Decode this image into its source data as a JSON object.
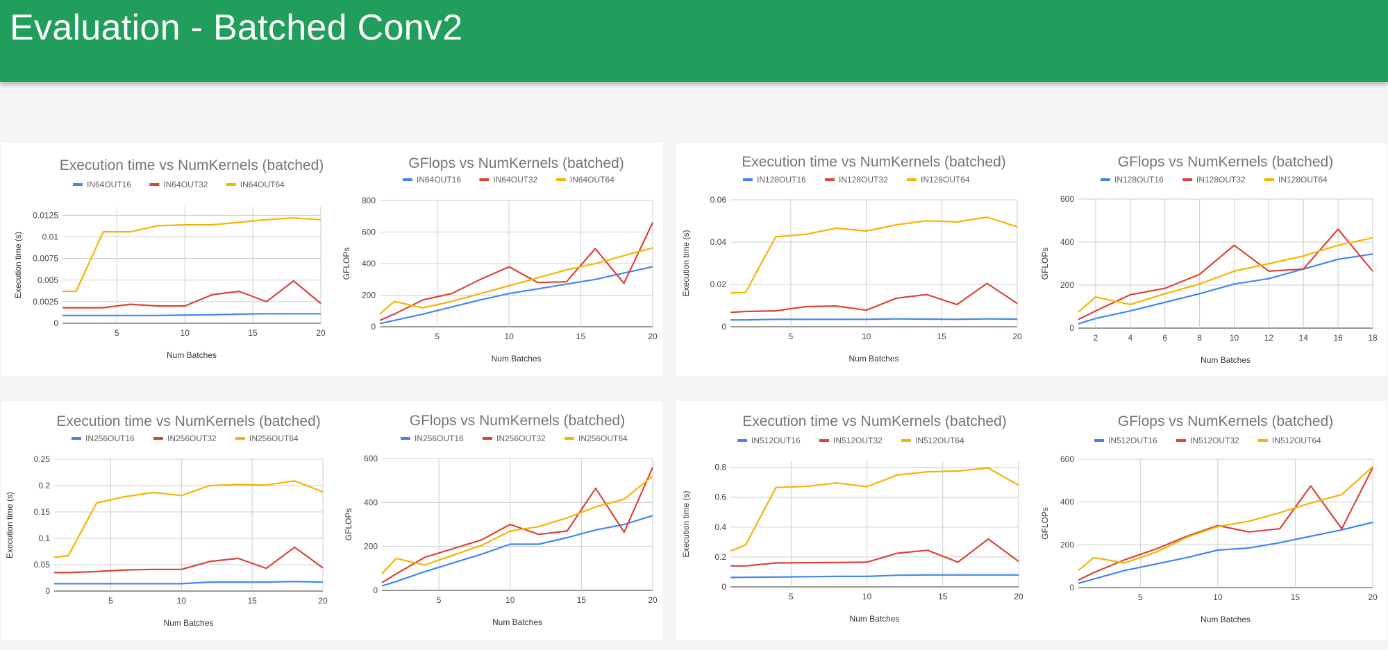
{
  "header": {
    "title": "Evaluation - Batched Conv2"
  },
  "colors": {
    "series": [
      "#4285f4",
      "#db4437",
      "#f4b400"
    ],
    "header": "#219e5b"
  },
  "chart_data": [
    {
      "type": "line",
      "title": "Execution time vs NumKernels (batched)",
      "xlabel": "Num Batches",
      "ylabel": "Execution time (s)",
      "xlim": [
        1,
        20
      ],
      "ylim": [
        0,
        0.0135
      ],
      "xticks": [
        5,
        10,
        15,
        20
      ],
      "xtick_labels": [
        "5",
        "10",
        "15",
        "20"
      ],
      "yticks": [
        0,
        0.0025,
        0.005,
        0.0075,
        0.01,
        0.0125
      ],
      "ytick_labels": [
        "0",
        "0.0025",
        "0.005",
        "0.0075",
        "0.01",
        "0.0125"
      ],
      "x": [
        1,
        2,
        4,
        6,
        8,
        10,
        12,
        14,
        16,
        18,
        20
      ],
      "series": [
        {
          "name": "IN64OUT16",
          "values": [
            0.0009,
            0.0009,
            0.0009,
            0.0009,
            0.0009,
            0.00095,
            0.001,
            0.00105,
            0.0011,
            0.0011,
            0.0011
          ]
        },
        {
          "name": "IN64OUT32",
          "values": [
            0.0018,
            0.0018,
            0.0018,
            0.0022,
            0.002,
            0.002,
            0.0033,
            0.0037,
            0.0025,
            0.0049,
            0.0023
          ]
        },
        {
          "name": "IN64OUT64",
          "values": [
            0.0037,
            0.0037,
            0.0106,
            0.0106,
            0.0113,
            0.0114,
            0.0114,
            0.0117,
            0.012,
            0.0122,
            0.012
          ]
        }
      ]
    },
    {
      "type": "line",
      "title": "GFlops vs NumKernels (batched)",
      "xlabel": "Num Batches",
      "ylabel": "GFLOPs",
      "xlim": [
        1,
        20
      ],
      "ylim": [
        0,
        800
      ],
      "xticks": [
        5,
        10,
        15,
        20
      ],
      "xtick_labels": [
        "5",
        "10",
        "15",
        "20"
      ],
      "yticks": [
        0,
        200,
        400,
        600,
        800
      ],
      "ytick_labels": [
        "0",
        "200",
        "400",
        "600",
        "800"
      ],
      "x": [
        1,
        2,
        4,
        6,
        8,
        10,
        12,
        14,
        16,
        18,
        20
      ],
      "series": [
        {
          "name": "IN64OUT16",
          "values": [
            20,
            40,
            80,
            125,
            170,
            210,
            240,
            270,
            300,
            340,
            380
          ]
        },
        {
          "name": "IN64OUT32",
          "values": [
            40,
            80,
            170,
            210,
            300,
            380,
            280,
            285,
            495,
            275,
            660
          ]
        },
        {
          "name": "IN64OUT64",
          "values": [
            80,
            160,
            120,
            160,
            210,
            260,
            310,
            360,
            400,
            450,
            500
          ]
        }
      ]
    },
    {
      "type": "line",
      "title": "Execution time vs NumKernels (batched)",
      "xlabel": "Num Batches",
      "ylabel": "Execution time (s)",
      "xlim": [
        1,
        20
      ],
      "ylim": [
        0,
        0.06
      ],
      "xticks": [
        5,
        10,
        15,
        20
      ],
      "xtick_labels": [
        "5",
        "10",
        "15",
        "20"
      ],
      "yticks": [
        0,
        0.02,
        0.04,
        0.06
      ],
      "ytick_labels": [
        "0",
        "0.02",
        "0.04",
        "0.06"
      ],
      "x": [
        1,
        2,
        4,
        6,
        8,
        10,
        12,
        14,
        16,
        18,
        20
      ],
      "series": [
        {
          "name": "IN128OUT16",
          "values": [
            0.0032,
            0.0032,
            0.0035,
            0.0035,
            0.0035,
            0.0035,
            0.0037,
            0.0036,
            0.0035,
            0.0037,
            0.0036
          ]
        },
        {
          "name": "IN128OUT32",
          "values": [
            0.0068,
            0.0072,
            0.0075,
            0.0095,
            0.0098,
            0.0078,
            0.0135,
            0.0152,
            0.0105,
            0.0205,
            0.011
          ]
        },
        {
          "name": "IN128OUT64",
          "values": [
            0.016,
            0.0162,
            0.0425,
            0.0437,
            0.0466,
            0.0452,
            0.0482,
            0.0501,
            0.0495,
            0.0518,
            0.0472
          ]
        }
      ]
    },
    {
      "type": "line",
      "title": "GFlops vs NumKernels (batched)",
      "xlabel": "Num Batches",
      "ylabel": "GFLOPs",
      "xlim": [
        1,
        18
      ],
      "ylim": [
        0,
        600
      ],
      "xticks": [
        2,
        4,
        6,
        8,
        10,
        12,
        14,
        16,
        18
      ],
      "xtick_labels": [
        "2",
        "4",
        "6",
        "8",
        "10",
        "12",
        "14",
        "16",
        "18"
      ],
      "yticks": [
        0,
        200,
        400,
        600
      ],
      "ytick_labels": [
        "0",
        "200",
        "400",
        "600"
      ],
      "x": [
        1,
        2,
        4,
        6,
        8,
        10,
        12,
        14,
        16,
        18
      ],
      "series": [
        {
          "name": "IN128OUT16",
          "values": [
            20,
            45,
            80,
            120,
            160,
            205,
            230,
            275,
            320,
            345
          ]
        },
        {
          "name": "IN128OUT32",
          "values": [
            40,
            80,
            155,
            185,
            250,
            385,
            265,
            275,
            460,
            265
          ]
        },
        {
          "name": "IN128OUT64",
          "values": [
            75,
            145,
            110,
            160,
            205,
            265,
            300,
            335,
            385,
            420
          ]
        }
      ]
    },
    {
      "type": "line",
      "title": "Execution time vs NumKernels (batched)",
      "xlabel": "Num Batches",
      "ylabel": "Execution time (s)",
      "xlim": [
        1,
        20
      ],
      "ylim": [
        0,
        0.25
      ],
      "xticks": [
        5,
        10,
        15,
        20
      ],
      "xtick_labels": [
        "5",
        "10",
        "15",
        "20"
      ],
      "yticks": [
        0,
        0.05,
        0.1,
        0.15,
        0.2,
        0.25
      ],
      "ytick_labels": [
        "0",
        "0.05",
        "0.1",
        "0.15",
        "0.2",
        "0.25"
      ],
      "x": [
        1,
        2,
        4,
        6,
        8,
        10,
        12,
        14,
        16,
        18,
        20
      ],
      "series": [
        {
          "name": "IN256OUT16",
          "values": [
            0.014,
            0.014,
            0.014,
            0.014,
            0.014,
            0.014,
            0.017,
            0.017,
            0.017,
            0.018,
            0.017
          ]
        },
        {
          "name": "IN256OUT32",
          "values": [
            0.035,
            0.035,
            0.037,
            0.04,
            0.041,
            0.041,
            0.056,
            0.062,
            0.043,
            0.083,
            0.044
          ]
        },
        {
          "name": "IN256OUT64",
          "values": [
            0.064,
            0.067,
            0.167,
            0.179,
            0.187,
            0.181,
            0.2,
            0.202,
            0.201,
            0.209,
            0.188
          ]
        }
      ]
    },
    {
      "type": "line",
      "title": "GFlops vs NumKernels (batched)",
      "xlabel": "Num Batches",
      "ylabel": "GFLOPs",
      "xlim": [
        1,
        20
      ],
      "ylim": [
        0,
        600
      ],
      "xticks": [
        5,
        10,
        15,
        20
      ],
      "xtick_labels": [
        "5",
        "10",
        "15",
        "20"
      ],
      "yticks": [
        0,
        200,
        400,
        600
      ],
      "ytick_labels": [
        "0",
        "200",
        "400",
        "600"
      ],
      "x": [
        1,
        2,
        4,
        6,
        8,
        10,
        12,
        14,
        16,
        18,
        20
      ],
      "series": [
        {
          "name": "IN256OUT16",
          "values": [
            20,
            40,
            85,
            125,
            165,
            210,
            210,
            240,
            275,
            300,
            340
          ]
        },
        {
          "name": "IN256OUT32",
          "values": [
            35,
            75,
            150,
            190,
            230,
            300,
            255,
            270,
            465,
            265,
            560
          ]
        },
        {
          "name": "IN256OUT64",
          "values": [
            75,
            145,
            115,
            160,
            205,
            270,
            290,
            330,
            380,
            415,
            520
          ]
        }
      ]
    },
    {
      "type": "line",
      "title": "Execution time vs NumKernels (batched)",
      "xlabel": "Num Batches",
      "ylabel": "Execution time (s)",
      "xlim": [
        1,
        20
      ],
      "ylim": [
        0,
        0.84
      ],
      "xticks": [
        5,
        10,
        15,
        20
      ],
      "xtick_labels": [
        "5",
        "10",
        "15",
        "20"
      ],
      "yticks": [
        0,
        0.2,
        0.4,
        0.6,
        0.8
      ],
      "ytick_labels": [
        "0",
        "0.2",
        "0.4",
        "0.6",
        "0.8"
      ],
      "x": [
        1,
        2,
        4,
        6,
        8,
        10,
        12,
        14,
        16,
        18,
        20
      ],
      "series": [
        {
          "name": "IN512OUT16",
          "values": [
            0.063,
            0.064,
            0.066,
            0.068,
            0.07,
            0.07,
            0.078,
            0.08,
            0.08,
            0.08,
            0.08
          ]
        },
        {
          "name": "IN512OUT32",
          "values": [
            0.14,
            0.14,
            0.16,
            0.162,
            0.163,
            0.165,
            0.225,
            0.245,
            0.165,
            0.32,
            0.17
          ]
        },
        {
          "name": "IN512OUT64",
          "values": [
            0.24,
            0.28,
            0.665,
            0.672,
            0.695,
            0.67,
            0.748,
            0.77,
            0.775,
            0.795,
            0.68
          ]
        }
      ]
    },
    {
      "type": "line",
      "title": "GFlops vs NumKernels (batched)",
      "xlabel": "Num Batches",
      "ylabel": "GFLOPs",
      "xlim": [
        1,
        20
      ],
      "ylim": [
        0,
        600
      ],
      "xticks": [
        5,
        10,
        15,
        20
      ],
      "xtick_labels": [
        "5",
        "10",
        "15",
        "20"
      ],
      "yticks": [
        0,
        200,
        400,
        600
      ],
      "ytick_labels": [
        "0",
        "200",
        "400",
        "600"
      ],
      "x": [
        1,
        2,
        4,
        6,
        8,
        10,
        12,
        14,
        16,
        18,
        20
      ],
      "series": [
        {
          "name": "IN512OUT16",
          "values": [
            20,
            40,
            80,
            110,
            140,
            175,
            185,
            210,
            240,
            270,
            305
          ]
        },
        {
          "name": "IN512OUT32",
          "values": [
            35,
            70,
            130,
            180,
            240,
            290,
            260,
            275,
            475,
            275,
            560
          ]
        },
        {
          "name": "IN512OUT64",
          "values": [
            80,
            140,
            115,
            165,
            235,
            285,
            310,
            350,
            395,
            435,
            565
          ]
        }
      ]
    }
  ]
}
